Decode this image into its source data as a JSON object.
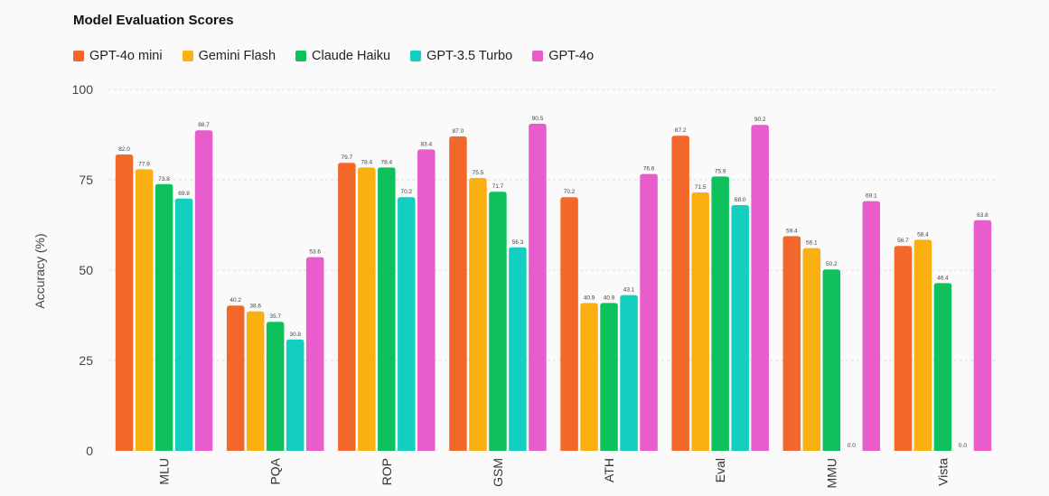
{
  "chart_data": {
    "type": "bar",
    "title": "Model Evaluation Scores",
    "xlabel": "",
    "ylabel": "Accuracy (%)",
    "ylim": [
      0,
      100
    ],
    "yticks": [
      0,
      25,
      50,
      75,
      100
    ],
    "grid": true,
    "legend_position": "top-left",
    "categories": [
      "MLU",
      "PQA",
      "ROP",
      "GSM",
      "ATH",
      "Eval",
      "MMU",
      "Vista"
    ],
    "series": [
      {
        "name": "GPT-4o mini",
        "color": "#f2682a",
        "values": [
          82.0,
          40.2,
          79.7,
          87.0,
          70.2,
          87.2,
          59.4,
          56.7
        ],
        "labels": [
          "82.0",
          "40.2",
          "79.7",
          "87.0",
          "70.2",
          "87.2",
          "59.4",
          "56.7"
        ]
      },
      {
        "name": "Gemini Flash",
        "color": "#fbb011",
        "values": [
          77.9,
          38.6,
          78.4,
          75.5,
          40.9,
          71.5,
          56.1,
          58.4
        ],
        "labels": [
          "77.9",
          "38.6",
          "78.4",
          "75.5",
          "40.9",
          "71.5",
          "56.1",
          "58.4"
        ]
      },
      {
        "name": "Claude Haiku",
        "color": "#0fc15c",
        "values": [
          73.8,
          35.7,
          78.4,
          71.7,
          40.9,
          75.9,
          50.2,
          46.4
        ],
        "labels": [
          "73.8",
          "35.7",
          "78.4",
          "71.7",
          "40.9",
          "75.9",
          "50.2",
          "46.4"
        ]
      },
      {
        "name": "GPT-3.5 Turbo",
        "color": "#12cfc0",
        "values": [
          69.8,
          30.8,
          70.2,
          56.3,
          43.1,
          68.0,
          0.0,
          0.0
        ],
        "labels": [
          "69.8",
          "30.8",
          "70.2",
          "56.3",
          "43.1",
          "68.0",
          "0.0",
          "0.0"
        ]
      },
      {
        "name": "GPT-4o",
        "color": "#e95ccb",
        "values": [
          88.7,
          53.6,
          83.4,
          90.5,
          76.6,
          90.2,
          69.1,
          63.8
        ],
        "labels": [
          "88.7",
          "53.6",
          "83.4",
          "90.5",
          "76.6",
          "90.2",
          "69.1",
          "63.8"
        ]
      }
    ]
  }
}
